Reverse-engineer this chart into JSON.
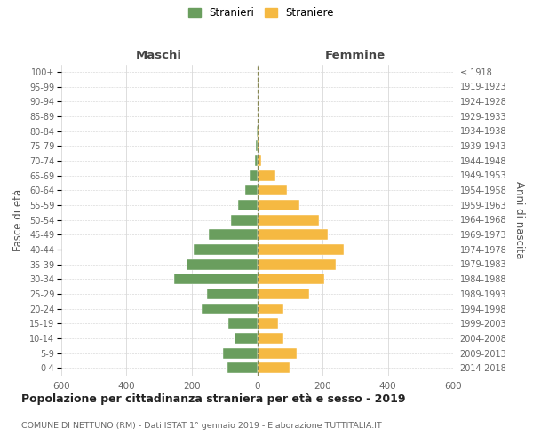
{
  "age_groups": [
    "0-4",
    "5-9",
    "10-14",
    "15-19",
    "20-24",
    "25-29",
    "30-34",
    "35-39",
    "40-44",
    "45-49",
    "50-54",
    "55-59",
    "60-64",
    "65-69",
    "70-74",
    "75-79",
    "80-84",
    "85-89",
    "90-94",
    "95-99",
    "100+"
  ],
  "birth_years": [
    "2014-2018",
    "2009-2013",
    "2004-2008",
    "1999-2003",
    "1994-1998",
    "1989-1993",
    "1984-1988",
    "1979-1983",
    "1974-1978",
    "1969-1973",
    "1964-1968",
    "1959-1963",
    "1954-1958",
    "1949-1953",
    "1944-1948",
    "1939-1943",
    "1934-1938",
    "1929-1933",
    "1924-1928",
    "1919-1923",
    "≤ 1918"
  ],
  "maschi": [
    90,
    105,
    70,
    88,
    170,
    155,
    255,
    215,
    195,
    148,
    80,
    58,
    36,
    22,
    8,
    5,
    2,
    0,
    0,
    0,
    0
  ],
  "femmine": [
    100,
    120,
    80,
    65,
    80,
    160,
    205,
    240,
    265,
    215,
    190,
    130,
    90,
    55,
    12,
    8,
    3,
    1,
    1,
    1,
    0
  ],
  "color_maschi": "#6a9e5e",
  "color_femmine": "#f5b942",
  "title": "Popolazione per cittadinanza straniera per età e sesso - 2019",
  "subtitle": "COMUNE DI NETTUNO (RM) - Dati ISTAT 1° gennaio 2019 - Elaborazione TUTTITALIA.IT",
  "label_maschi": "Maschi",
  "label_femmine": "Femmine",
  "ylabel_left": "Fasce di età",
  "ylabel_right": "Anni di nascita",
  "xlim": 600,
  "legend_stranieri": "Stranieri",
  "legend_straniere": "Straniere",
  "bg_color": "#ffffff",
  "grid_color": "#d0d0d0"
}
